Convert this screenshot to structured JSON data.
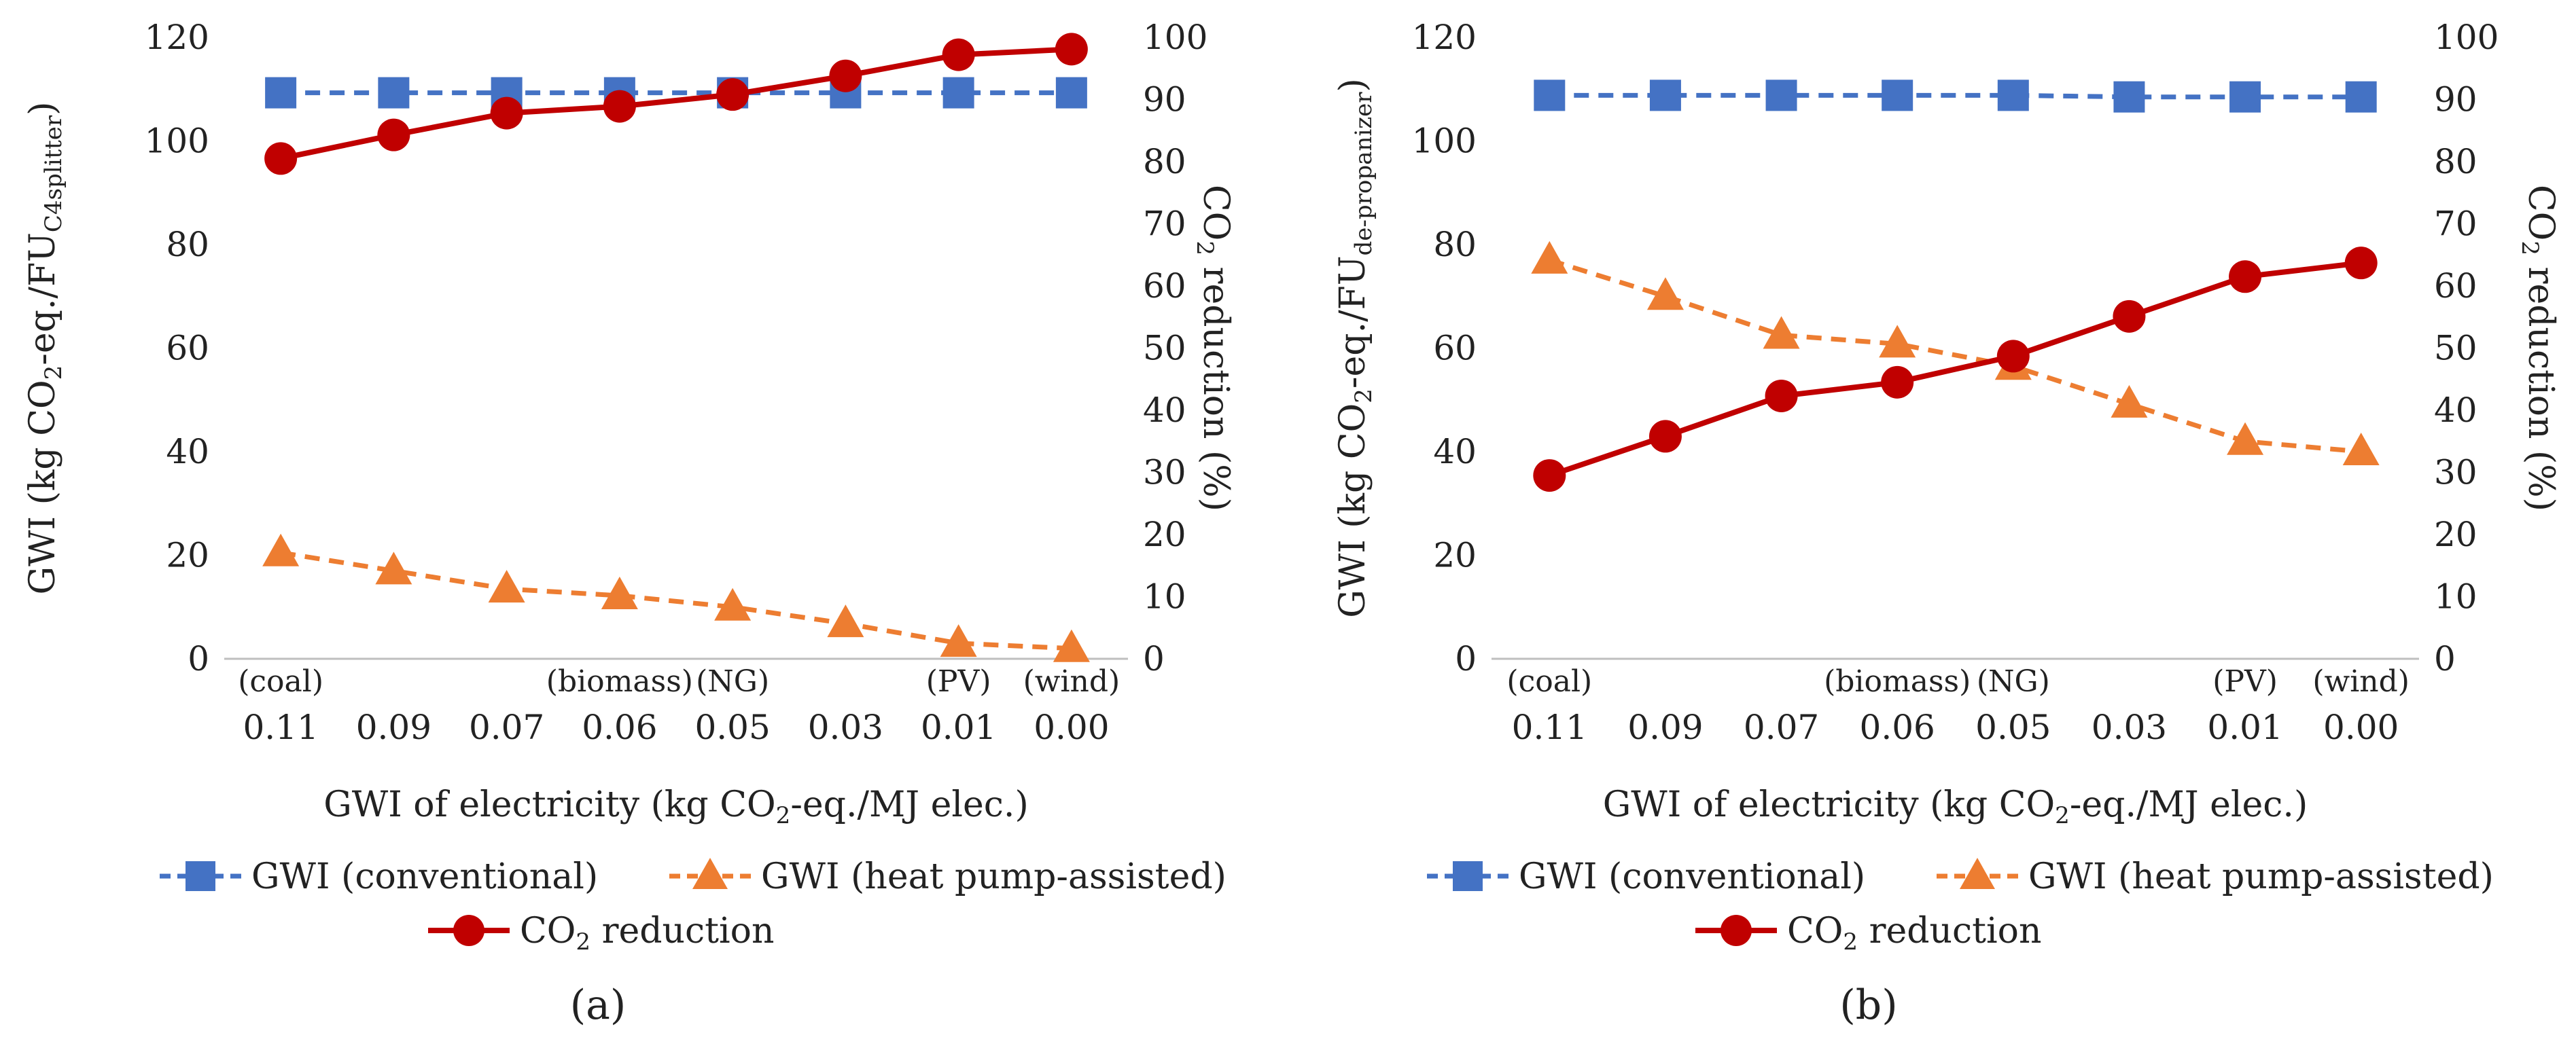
{
  "chart_data": [
    {
      "type": "line",
      "caption": "(a)",
      "categories": [
        "0.11",
        "0.09",
        "0.07",
        "0.06",
        "0.05",
        "0.03",
        "0.01",
        "0.00"
      ],
      "category_notes": [
        "(coal)",
        "",
        "",
        "(biomass)",
        "(NG)",
        "",
        "(PV)",
        "(wind)"
      ],
      "xlabel": {
        "prefix": "GWI of electricity  (kg CO",
        "sub": "2",
        "suffix": "-eq./MJ elec.)"
      },
      "ylabel_left": {
        "prefix": "GWI (kg CO",
        "sub1": "2",
        "middle": "-eq./FU",
        "sub2": "C4splitter",
        "suffix": ")"
      },
      "ylabel_right": {
        "prefix": "CO",
        "sub": "2",
        "suffix": " reduction (%)"
      },
      "ylim_left": [
        0,
        120
      ],
      "yticks_left": [
        "0",
        "20",
        "40",
        "60",
        "80",
        "100",
        "120"
      ],
      "ylim_right": [
        0,
        100
      ],
      "yticks_right": [
        "0",
        "10",
        "20",
        "30",
        "40",
        "50",
        "60",
        "70",
        "80",
        "90",
        "100"
      ],
      "series": [
        {
          "name": "GWI (conventional)",
          "axis": "left",
          "color": "#4472C4",
          "marker": "square",
          "dash": true,
          "values": [
            109.3,
            109.3,
            109.3,
            109.3,
            109.3,
            109.3,
            109.3,
            109.3
          ]
        },
        {
          "name": "GWI (heat pump-assisted)",
          "axis": "left",
          "color": "#ED7D31",
          "marker": "triangle",
          "dash": true,
          "values": [
            20.5,
            17.0,
            13.5,
            12.2,
            10.0,
            6.8,
            3.0,
            2.0
          ]
        },
        {
          "name": "CO2 reduction",
          "axis": "right",
          "color": "#C00000",
          "marker": "circle",
          "dash": false,
          "values": [
            80.5,
            84.3,
            87.8,
            88.9,
            90.8,
            93.8,
            97.2,
            98.1
          ]
        }
      ],
      "legend": [
        {
          "text": "GWI (conventional)"
        },
        {
          "text": "GWI (heat pump-assisted)"
        },
        {
          "prefix": "CO",
          "sub": "2",
          "suffix": " reduction"
        }
      ]
    },
    {
      "type": "line",
      "caption": "(b)",
      "categories": [
        "0.11",
        "0.09",
        "0.07",
        "0.06",
        "0.05",
        "0.03",
        "0.01",
        "0.00"
      ],
      "category_notes": [
        "(coal)",
        "",
        "",
        "(biomass)",
        "(NG)",
        "",
        "(PV)",
        "(wind)"
      ],
      "xlabel": {
        "prefix": "GWI of electricity  (kg CO",
        "sub": "2",
        "suffix": "-eq./MJ elec.)"
      },
      "ylabel_left": {
        "prefix": "GWI (kg CO",
        "sub1": "2",
        "middle": "-eq./FU",
        "sub2": "de-propanizer",
        "suffix": ")"
      },
      "ylabel_right": {
        "prefix": "CO",
        "sub": "2",
        "suffix": " reduction (%)"
      },
      "ylim_left": [
        0,
        120
      ],
      "yticks_left": [
        "0",
        "20",
        "40",
        "60",
        "80",
        "100",
        "120"
      ],
      "ylim_right": [
        0,
        100
      ],
      "yticks_right": [
        "0",
        "10",
        "20",
        "30",
        "40",
        "50",
        "60",
        "70",
        "80",
        "90",
        "100"
      ],
      "series": [
        {
          "name": "GWI (conventional)",
          "axis": "left",
          "color": "#4472C4",
          "marker": "square",
          "dash": true,
          "values": [
            108.8,
            108.8,
            108.8,
            108.8,
            108.8,
            108.5,
            108.5,
            108.5
          ]
        },
        {
          "name": "GWI (heat pump-assisted)",
          "axis": "left",
          "color": "#ED7D31",
          "marker": "triangle",
          "dash": true,
          "values": [
            77.0,
            70.0,
            62.5,
            60.8,
            56.5,
            49.2,
            42.0,
            40.0
          ]
        },
        {
          "name": "CO2 reduction",
          "axis": "right",
          "color": "#C00000",
          "marker": "circle",
          "dash": false,
          "values": [
            29.5,
            35.8,
            42.3,
            44.5,
            48.7,
            55.1,
            61.5,
            63.7
          ]
        }
      ],
      "legend": [
        {
          "text": "GWI (conventional)"
        },
        {
          "text": "GWI (heat pump-assisted)"
        },
        {
          "prefix": "CO",
          "sub": "2",
          "suffix": " reduction"
        }
      ]
    }
  ]
}
